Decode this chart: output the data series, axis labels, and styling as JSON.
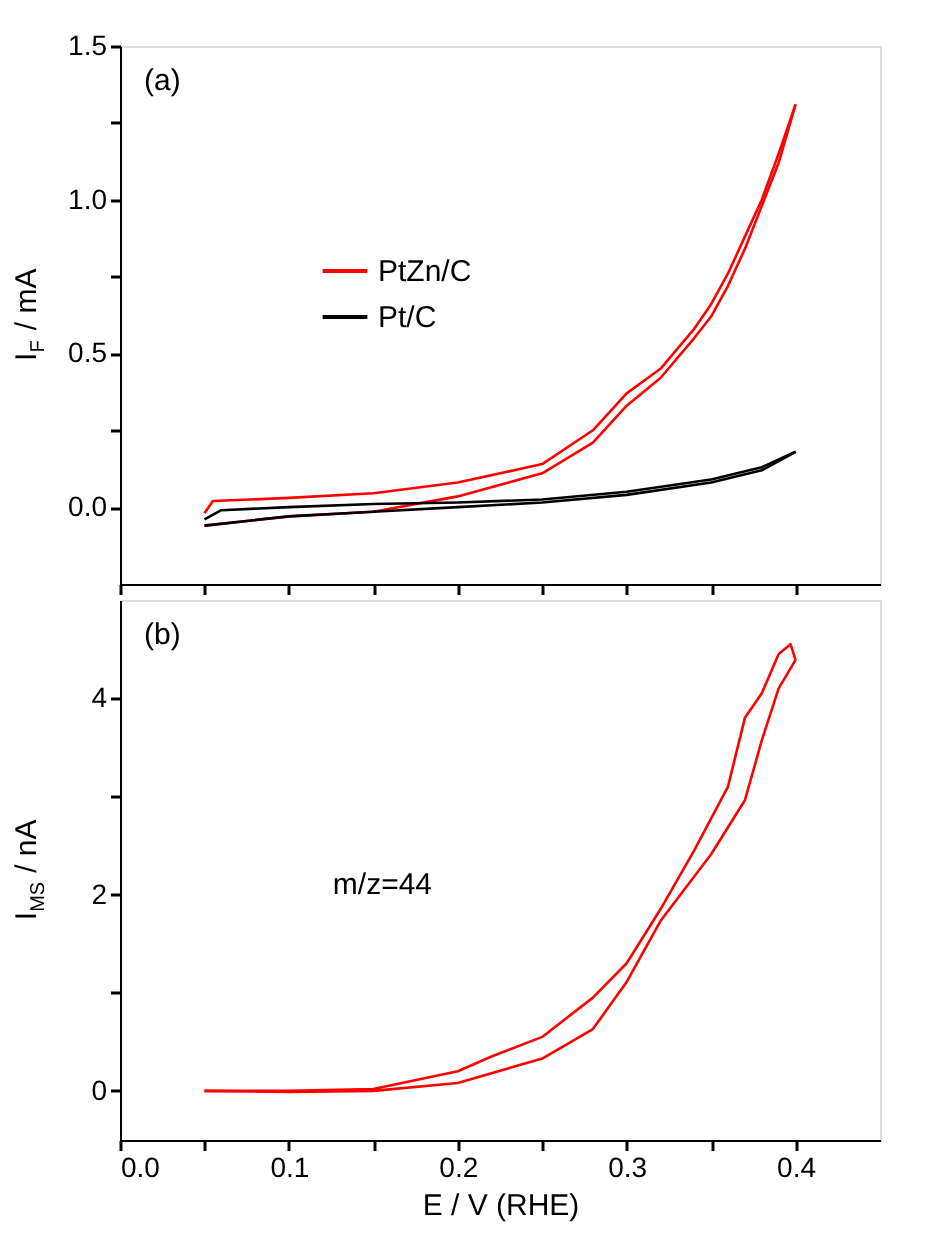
{
  "chart_data": [
    {
      "type": "line",
      "ylabel": "I$_{F}$ / mA",
      "annotations": [
        "(a)"
      ],
      "legend": "top left",
      "grid": false,
      "tick_labels": "y",
      "xlim": [
        0,
        0.45
      ],
      "xticks": [
        0,
        {
          "value": 0.05,
          "label": null
        },
        0.1,
        {
          "value": 0.15,
          "label": null
        },
        0.2,
        {
          "value": 0.25,
          "label": null
        },
        0.3,
        {
          "value": 0.35,
          "label": null
        },
        0.4
      ],
      "ylim": [
        -0.25,
        1.5
      ],
      "yticks": [
        {
          "value": 0.0,
          "label": "0.0"
        },
        {
          "value": 0.25,
          "label": null
        },
        0.5,
        {
          "value": 0.75,
          "label": null
        },
        {
          "value": 1.0,
          "label": "1.0"
        },
        {
          "value": 1.25,
          "label": null
        },
        1.5
      ],
      "series": [
        {
          "name": "PtZn/C",
          "color": "#ff0000",
          "x": [
            0.05,
            0.1,
            0.15,
            0.2,
            0.25,
            0.28,
            0.3,
            0.32,
            0.34,
            0.35,
            0.36,
            0.37,
            0.38,
            0.39,
            0.4
          ],
          "values": [
            -0.06,
            -0.03,
            -0.015,
            0.035,
            0.11,
            0.21,
            0.33,
            0.42,
            0.55,
            0.62,
            0.72,
            0.84,
            0.98,
            1.12,
            1.31
          ]
        },
        {
          "color": "#ff0000",
          "x": [
            0.05,
            0.055,
            0.1,
            0.15,
            0.2,
            0.25,
            0.28,
            0.3,
            0.32,
            0.34,
            0.35,
            0.36,
            0.37,
            0.38,
            0.39,
            0.4
          ],
          "values": [
            -0.02,
            0.02,
            0.03,
            0.045,
            0.08,
            0.14,
            0.25,
            0.37,
            0.45,
            0.58,
            0.66,
            0.76,
            0.88,
            1.0,
            1.15,
            1.31
          ]
        },
        {
          "name": "Pt/C",
          "color": "#000000",
          "x": [
            0.05,
            0.1,
            0.15,
            0.2,
            0.25,
            0.3,
            0.35,
            0.38,
            0.4
          ],
          "values": [
            -0.06,
            -0.03,
            -0.015,
            0.0,
            0.015,
            0.04,
            0.08,
            0.12,
            0.18
          ]
        },
        {
          "color": "#000000",
          "x": [
            0.05,
            0.06,
            0.1,
            0.15,
            0.2,
            0.25,
            0.3,
            0.35,
            0.38,
            0.4
          ],
          "values": [
            -0.04,
            -0.01,
            0.0,
            0.01,
            0.015,
            0.025,
            0.05,
            0.09,
            0.13,
            0.18
          ]
        }
      ]
    },
    {
      "type": "line",
      "xlabel": "E / V (RHE)",
      "ylabel": "I$_{MS}$ / nA",
      "annotations": [
        "(b)",
        "m/z=44"
      ],
      "legend": false,
      "grid": false,
      "xlim": [
        0,
        0.45
      ],
      "xticks": [
        {
          "value": 0.0,
          "label": "0.0"
        },
        {
          "value": 0.05,
          "label": null
        },
        0.1,
        {
          "value": 0.15,
          "label": null
        },
        0.2,
        {
          "value": 0.25,
          "label": null
        },
        0.3,
        {
          "value": 0.35,
          "label": null
        },
        0.4
      ],
      "ylim": [
        -0.5,
        5
      ],
      "yticks": [
        0,
        {
          "value": 1,
          "label": null
        },
        2,
        {
          "value": 3,
          "label": null
        },
        4
      ],
      "series": [
        {
          "color": "#ff0000",
          "x": [
            0.05,
            0.1,
            0.15,
            0.2,
            0.25,
            0.28,
            0.3,
            0.32,
            0.35,
            0.37,
            0.38,
            0.39,
            0.4
          ],
          "values": [
            0,
            -0.01,
            0.0,
            0.08,
            0.33,
            0.63,
            1.11,
            1.73,
            2.41,
            2.96,
            3.57,
            4.1,
            4.39
          ]
        },
        {
          "color": "#ff0000",
          "x": [
            0.05,
            0.1,
            0.15,
            0.2,
            0.22,
            0.25,
            0.28,
            0.3,
            0.32,
            0.34,
            0.36,
            0.37,
            0.38,
            0.39,
            0.397,
            0.4
          ],
          "values": [
            0.0,
            0.0,
            0.02,
            0.2,
            0.35,
            0.55,
            0.95,
            1.3,
            1.85,
            2.45,
            3.1,
            3.8,
            4.05,
            4.45,
            4.55,
            4.39
          ]
        }
      ]
    }
  ]
}
